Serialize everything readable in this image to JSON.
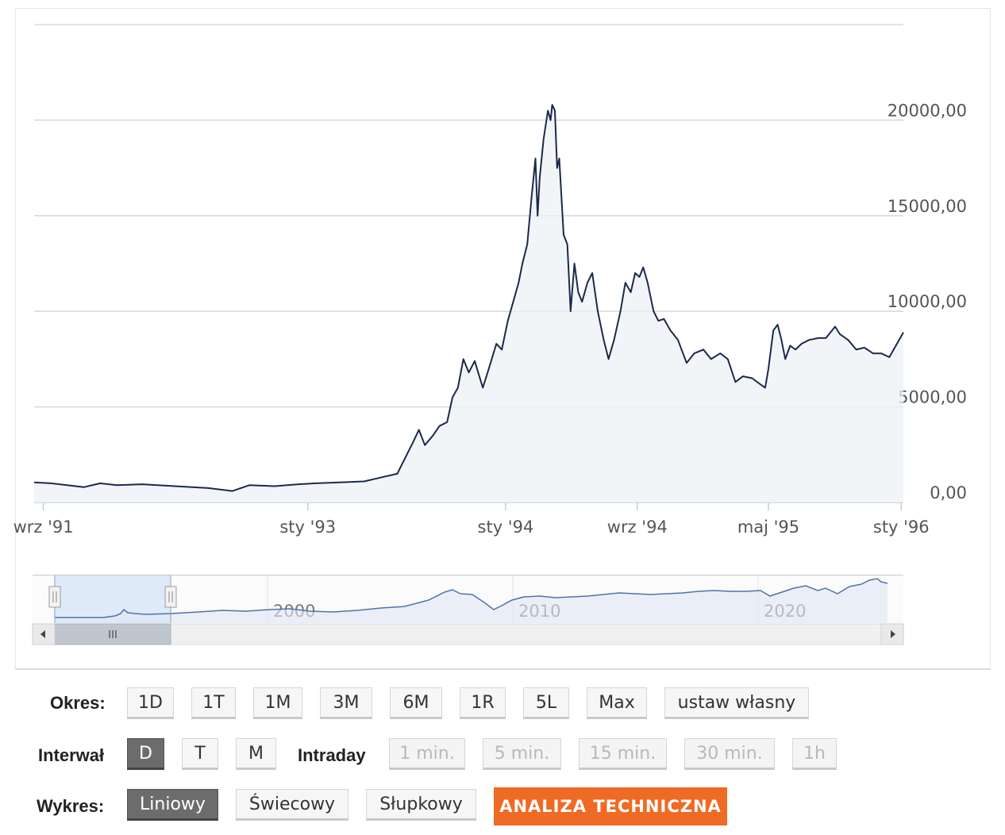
{
  "chart_data": {
    "type": "area",
    "title": "",
    "xlabel": "",
    "ylabel": "",
    "ylim": [
      0,
      25000
    ],
    "y_ticks": [
      "0,00",
      "5000,00",
      "10000,00",
      "15000,00",
      "20000,00"
    ],
    "x_ticks": [
      {
        "label": "wrz '91",
        "date": "1991-09-01"
      },
      {
        "label": "sty '93",
        "date": "1993-01-01"
      },
      {
        "label": "sty '94",
        "date": "1994-01-01"
      },
      {
        "label": "wrz '94",
        "date": "1994-09-01"
      },
      {
        "label": "maj '95",
        "date": "1995-05-01"
      },
      {
        "label": "sty '96",
        "date": "1996-01-01"
      }
    ],
    "grid": true,
    "series": [
      {
        "color": "#1b2a4a",
        "points": [
          [
            "1991-08-15",
            1050
          ],
          [
            "1991-09-15",
            1000
          ],
          [
            "1991-10-15",
            900
          ],
          [
            "1991-11-15",
            800
          ],
          [
            "1991-12-15",
            1000
          ],
          [
            "1992-01-15",
            900
          ],
          [
            "1992-03-01",
            950
          ],
          [
            "1992-05-01",
            850
          ],
          [
            "1992-07-01",
            750
          ],
          [
            "1992-08-15",
            600
          ],
          [
            "1992-09-15",
            900
          ],
          [
            "1992-11-01",
            850
          ],
          [
            "1992-12-15",
            950
          ],
          [
            "1993-01-15",
            1000
          ],
          [
            "1993-03-01",
            1050
          ],
          [
            "1993-04-15",
            1100
          ],
          [
            "1993-05-15",
            1300
          ],
          [
            "1993-06-15",
            1500
          ],
          [
            "1993-07-01",
            2400
          ],
          [
            "1993-07-15",
            3200
          ],
          [
            "1993-07-25",
            3800
          ],
          [
            "1993-08-05",
            3000
          ],
          [
            "1993-08-20",
            3500
          ],
          [
            "1993-09-01",
            4000
          ],
          [
            "1993-09-15",
            4200
          ],
          [
            "1993-09-25",
            5500
          ],
          [
            "1993-10-05",
            6000
          ],
          [
            "1993-10-15",
            7500
          ],
          [
            "1993-10-25",
            6800
          ],
          [
            "1993-11-05",
            7400
          ],
          [
            "1993-11-20",
            6000
          ],
          [
            "1993-12-01",
            7000
          ],
          [
            "1993-12-15",
            8300
          ],
          [
            "1993-12-25",
            8000
          ],
          [
            "1994-01-05",
            9500
          ],
          [
            "1994-01-15",
            10500
          ],
          [
            "1994-01-25",
            11500
          ],
          [
            "1994-02-01",
            12500
          ],
          [
            "1994-02-10",
            13500
          ],
          [
            "1994-02-18",
            16000
          ],
          [
            "1994-02-25",
            18000
          ],
          [
            "1994-03-01",
            15000
          ],
          [
            "1994-03-05",
            17000
          ],
          [
            "1994-03-12",
            19000
          ],
          [
            "1994-03-20",
            20500
          ],
          [
            "1994-03-25",
            20000
          ],
          [
            "1994-03-28",
            20800
          ],
          [
            "1994-04-02",
            20500
          ],
          [
            "1994-04-06",
            17500
          ],
          [
            "1994-04-10",
            18000
          ],
          [
            "1994-04-18",
            14000
          ],
          [
            "1994-04-25",
            13500
          ],
          [
            "1994-05-01",
            10000
          ],
          [
            "1994-05-08",
            12500
          ],
          [
            "1994-05-15",
            11000
          ],
          [
            "1994-05-22",
            10500
          ],
          [
            "1994-06-01",
            11500
          ],
          [
            "1994-06-10",
            12000
          ],
          [
            "1994-06-20",
            10000
          ],
          [
            "1994-07-01",
            8500
          ],
          [
            "1994-07-10",
            7500
          ],
          [
            "1994-07-20",
            8500
          ],
          [
            "1994-08-01",
            10000
          ],
          [
            "1994-08-10",
            11500
          ],
          [
            "1994-08-20",
            11000
          ],
          [
            "1994-08-28",
            12000
          ],
          [
            "1994-09-05",
            11800
          ],
          [
            "1994-09-12",
            12300
          ],
          [
            "1994-09-20",
            11500
          ],
          [
            "1994-10-01",
            10000
          ],
          [
            "1994-10-10",
            9500
          ],
          [
            "1994-10-20",
            9600
          ],
          [
            "1994-11-01",
            9000
          ],
          [
            "1994-11-15",
            8500
          ],
          [
            "1994-12-01",
            7300
          ],
          [
            "1994-12-15",
            7800
          ],
          [
            "1995-01-01",
            8000
          ],
          [
            "1995-01-15",
            7500
          ],
          [
            "1995-02-01",
            7800
          ],
          [
            "1995-02-15",
            7500
          ],
          [
            "1995-03-01",
            6300
          ],
          [
            "1995-03-15",
            6600
          ],
          [
            "1995-04-01",
            6500
          ],
          [
            "1995-04-15",
            6200
          ],
          [
            "1995-04-25",
            6000
          ],
          [
            "1995-05-01",
            7000
          ],
          [
            "1995-05-10",
            9000
          ],
          [
            "1995-05-18",
            9300
          ],
          [
            "1995-05-25",
            8500
          ],
          [
            "1995-06-01",
            7500
          ],
          [
            "1995-06-10",
            8200
          ],
          [
            "1995-06-20",
            8000
          ],
          [
            "1995-07-01",
            8300
          ],
          [
            "1995-07-15",
            8500
          ],
          [
            "1995-08-01",
            8600
          ],
          [
            "1995-08-15",
            8600
          ],
          [
            "1995-09-01",
            9200
          ],
          [
            "1995-09-10",
            8800
          ],
          [
            "1995-09-25",
            8500
          ],
          [
            "1995-10-10",
            8000
          ],
          [
            "1995-10-25",
            8100
          ],
          [
            "1995-11-10",
            7800
          ],
          [
            "1995-11-25",
            7800
          ],
          [
            "1995-12-10",
            7600
          ],
          [
            "1995-12-20",
            8100
          ],
          [
            "1996-01-01",
            8700
          ],
          [
            "1996-01-05",
            8900
          ]
        ]
      }
    ]
  },
  "navigator": {
    "years": [
      "2000",
      "2010",
      "2020"
    ]
  },
  "controls": {
    "okres_label": "Okres:",
    "okres_buttons": [
      "1D",
      "1T",
      "1M",
      "3M",
      "6M",
      "1R",
      "5L",
      "Max",
      "ustaw własny"
    ],
    "interwal_label": "Interwał",
    "interwal_buttons": [
      "D",
      "T",
      "M"
    ],
    "intraday_label": "Intraday",
    "intraday_buttons": [
      "1 min.",
      "5 min.",
      "15 min.",
      "30 min.",
      "1h"
    ],
    "wykres_label": "Wykres:",
    "wykres_buttons": [
      "Liniowy",
      "Świecowy",
      "Słupkowy"
    ],
    "analysis_button": "ANALIZA TECHNICZNA"
  }
}
